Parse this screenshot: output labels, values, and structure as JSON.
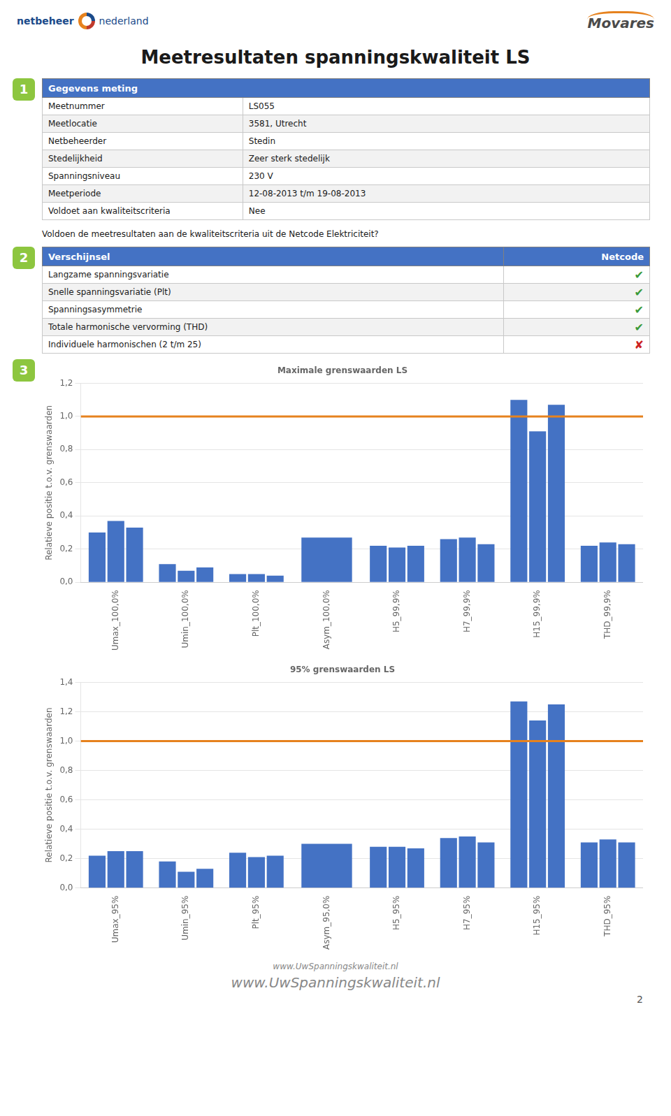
{
  "logo_texts": [
    "netbeheer",
    "nederland",
    "Movares"
  ],
  "title": "Meetresultaten spanningskwaliteit LS",
  "section_numbers": [
    "1",
    "2",
    "3"
  ],
  "badge_color": "#8DC63F",
  "header_color": "#4472C4",
  "table1": {
    "header": [
      "Gegevens meting"
    ],
    "rows": [
      [
        "Meetnummer",
        "LS055"
      ],
      [
        "Meetlocatie",
        "3581, Utrecht"
      ],
      [
        "Netbeheerder",
        "Stedin"
      ],
      [
        "Stedelijkheid",
        "Zeer sterk stedelijk"
      ],
      [
        "Spanningsniveau",
        "230 V"
      ],
      [
        "Meetperiode",
        "12-08-2013 t/m 19-08-2013"
      ],
      [
        "Voldoet aan kwaliteitscriteria",
        "Nee"
      ]
    ]
  },
  "question": "Voldoen de meetresultaten aan de kwaliteitscriteria uit de Netcode Elektriciteit?",
  "table2": {
    "header": [
      "Verschijnsel",
      "Netcode"
    ],
    "rows": [
      [
        "Langzame spanningsvariatie",
        "✔"
      ],
      [
        "Snelle spanningsvariatie (Plt)",
        "✔"
      ],
      [
        "Spanningsasymmetrie",
        "✔"
      ],
      [
        "Totale harmonische vervorming (THD)",
        "✔"
      ],
      [
        "Individuele harmonischen (2 t/m 25)",
        "✘"
      ]
    ]
  },
  "mark_colors": {
    "✔": "#3A9A3A",
    "✘": "#CC2222"
  },
  "chart_data": [
    {
      "type": "bar",
      "title": "Maximale grenswaarden LS",
      "ylabel": "Relatieve positie t.o.v. grenswaarden",
      "categories": [
        "Umax_100,0%",
        "Umin_100,0%",
        "Plt_100,0%",
        "Asym_100,0%",
        "H5_99,9%",
        "H7_99,9%",
        "H15_99,9%",
        "THD_99,9%"
      ],
      "series": [
        {
          "color": "#4472C4",
          "values": [
            0.3,
            0.11,
            0.05,
            0.27,
            0.22,
            0.26,
            1.1,
            0.22
          ]
        },
        {
          "color": "#4472C4",
          "values": [
            0.37,
            0.07,
            0.05,
            null,
            0.21,
            0.27,
            0.91,
            0.24
          ]
        },
        {
          "color": "#4472C4",
          "values": [
            0.33,
            0.09,
            0.04,
            null,
            0.22,
            0.23,
            1.07,
            0.23
          ]
        }
      ],
      "reference_line": {
        "y": 1.0,
        "color": "#E6821E"
      },
      "ylim": [
        0.0,
        1.2
      ],
      "yticks": [
        {
          "value": 0.0,
          "label": "0,0"
        },
        {
          "value": 0.2,
          "label": "0,2"
        },
        {
          "value": 0.4,
          "label": "0,4"
        },
        {
          "value": 0.6,
          "label": "0,6"
        },
        {
          "value": 0.8,
          "label": "0,8"
        },
        {
          "value": 1.0,
          "label": "1,0"
        },
        {
          "value": 1.2,
          "label": "1,2"
        }
      ],
      "grid": true
    },
    {
      "type": "bar",
      "title": "95% grenswaarden LS",
      "ylabel": "Relatieve positie t.o.v. grenswaarden",
      "categories": [
        "Umax_95%",
        "Umin_95%",
        "Plt_95%",
        "Asym_95,0%",
        "H5_95%",
        "H7_95%",
        "H15_95%",
        "THD_95%"
      ],
      "series": [
        {
          "color": "#4472C4",
          "values": [
            0.22,
            0.18,
            0.24,
            0.3,
            0.28,
            0.34,
            1.27,
            0.31
          ]
        },
        {
          "color": "#4472C4",
          "values": [
            0.25,
            0.11,
            0.21,
            null,
            0.28,
            0.35,
            1.14,
            0.33
          ]
        },
        {
          "color": "#4472C4",
          "values": [
            0.25,
            0.13,
            0.22,
            null,
            0.27,
            0.31,
            1.25,
            0.31
          ]
        }
      ],
      "reference_line": {
        "y": 1.0,
        "color": "#E6821E"
      },
      "ylim": [
        0.0,
        1.4
      ],
      "yticks": [
        {
          "value": 0.0,
          "label": "0,0"
        },
        {
          "value": 0.2,
          "label": "0,2"
        },
        {
          "value": 0.4,
          "label": "0,4"
        },
        {
          "value": 0.6,
          "label": "0,6"
        },
        {
          "value": 0.8,
          "label": "0,8"
        },
        {
          "value": 1.0,
          "label": "1,0"
        },
        {
          "value": 1.2,
          "label": "1,2"
        },
        {
          "value": 1.4,
          "label": "1,4"
        }
      ],
      "grid": true
    }
  ],
  "footers": [
    "www.UwSpanningskwaliteit.nl",
    "www.UwSpanningskwaliteit.nl"
  ],
  "page_number": "2"
}
